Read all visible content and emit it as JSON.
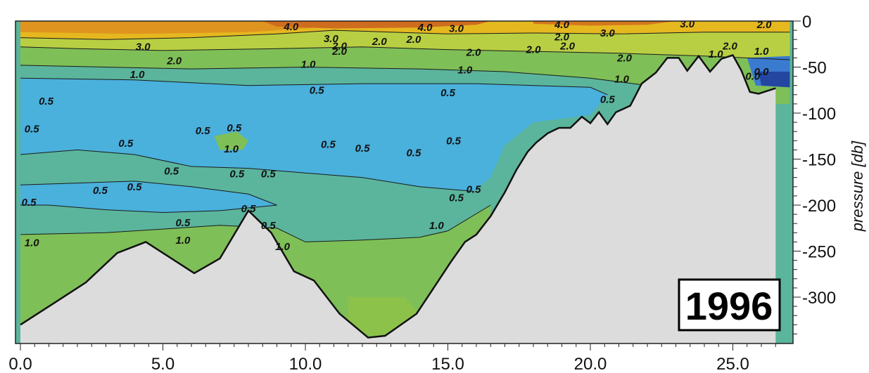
{
  "chart_data": {
    "type": "contour",
    "year_label": "1996",
    "ylabel": "pressure [db]",
    "xlabel": "",
    "xlim": [
      0,
      26.5
    ],
    "ylim": [
      0,
      345
    ],
    "y_inverted": true,
    "x_ticks": [
      {
        "value": 0,
        "label": "0.0"
      },
      {
        "value": 5,
        "label": "5.0"
      },
      {
        "value": 10,
        "label": "10.0"
      },
      {
        "value": 15,
        "label": "15.0"
      },
      {
        "value": 20,
        "label": "20.0"
      },
      {
        "value": 25,
        "label": "25.0"
      }
    ],
    "y_ticks": [
      {
        "value": 0,
        "label": "0"
      },
      {
        "value": 50,
        "label": "-50"
      },
      {
        "value": 100,
        "label": "-100"
      },
      {
        "value": 150,
        "label": "-150"
      },
      {
        "value": 200,
        "label": "-200"
      },
      {
        "value": 250,
        "label": "-250"
      },
      {
        "value": 300,
        "label": "-300"
      }
    ],
    "bathymetry": [
      [
        0,
        330
      ],
      [
        1.2,
        306
      ],
      [
        2.3,
        284
      ],
      [
        3.4,
        252
      ],
      [
        4.4,
        240
      ],
      [
        5.1,
        254
      ],
      [
        6.1,
        274
      ],
      [
        7.0,
        258
      ],
      [
        8.0,
        206
      ],
      [
        8.8,
        230
      ],
      [
        9.6,
        272
      ],
      [
        10.3,
        282
      ],
      [
        11.2,
        318
      ],
      [
        12.2,
        344
      ],
      [
        12.8,
        342
      ],
      [
        13.9,
        318
      ],
      [
        14.5,
        290
      ],
      [
        15.1,
        262
      ],
      [
        15.6,
        240
      ],
      [
        16.0,
        232
      ],
      [
        16.5,
        212
      ],
      [
        17.0,
        186
      ],
      [
        17.4,
        162
      ],
      [
        17.8,
        142
      ],
      [
        18.1,
        132
      ],
      [
        18.5,
        122
      ],
      [
        18.9,
        116
      ],
      [
        19.3,
        116
      ],
      [
        19.7,
        104
      ],
      [
        20.0,
        111
      ],
      [
        20.3,
        99
      ],
      [
        20.6,
        112
      ],
      [
        20.9,
        99
      ],
      [
        21.4,
        92
      ],
      [
        21.8,
        68
      ],
      [
        22.3,
        56
      ],
      [
        22.7,
        40
      ],
      [
        23.1,
        40
      ],
      [
        23.4,
        54
      ],
      [
        23.8,
        38
      ],
      [
        24.2,
        55
      ],
      [
        24.6,
        41
      ],
      [
        25.0,
        37
      ],
      [
        25.3,
        54
      ],
      [
        25.6,
        77
      ],
      [
        25.9,
        79
      ],
      [
        26.5,
        73
      ]
    ],
    "contour_levels": [
      "0.0",
      "0.5",
      "1.0",
      "2.0",
      "3.0",
      "4.0"
    ],
    "contour_labels": [
      {
        "text": "4.0",
        "x": 9.5,
        "y": 6
      },
      {
        "text": "4.0",
        "x": 14.2,
        "y": 7
      },
      {
        "text": "3.0",
        "x": 15.3,
        "y": 8
      },
      {
        "text": "4.0",
        "x": 19.0,
        "y": 4
      },
      {
        "text": "3.0",
        "x": 23.4,
        "y": 3
      },
      {
        "text": "2.0",
        "x": 26.1,
        "y": 4
      },
      {
        "text": "3.0",
        "x": 4.3,
        "y": 28
      },
      {
        "text": "2.0",
        "x": 5.4,
        "y": 43
      },
      {
        "text": "3.0",
        "x": 10.9,
        "y": 19
      },
      {
        "text": "2.0",
        "x": 11.2,
        "y": 27
      },
      {
        "text": "2.0",
        "x": 11.2,
        "y": 33
      },
      {
        "text": "2.0",
        "x": 12.6,
        "y": 22
      },
      {
        "text": "2.0",
        "x": 13.8,
        "y": 20
      },
      {
        "text": "2.0",
        "x": 19.0,
        "y": 17
      },
      {
        "text": "3.0",
        "x": 20.6,
        "y": 13
      },
      {
        "text": "2.0",
        "x": 15.9,
        "y": 34
      },
      {
        "text": "2.0",
        "x": 18.0,
        "y": 31
      },
      {
        "text": "2.0",
        "x": 19.2,
        "y": 27
      },
      {
        "text": "2.0",
        "x": 21.2,
        "y": 40
      },
      {
        "text": "2.0",
        "x": 24.9,
        "y": 27
      },
      {
        "text": "1.0",
        "x": 24.4,
        "y": 36
      },
      {
        "text": "1.0",
        "x": 26.0,
        "y": 33
      },
      {
        "text": "0.0",
        "x": 26.0,
        "y": 55
      },
      {
        "text": "0.0",
        "x": 25.7,
        "y": 60
      },
      {
        "text": "1.0",
        "x": 10.1,
        "y": 47
      },
      {
        "text": "1.0",
        "x": 15.6,
        "y": 53
      },
      {
        "text": "1.0",
        "x": 4.1,
        "y": 58
      },
      {
        "text": "1.0",
        "x": 21.1,
        "y": 63
      },
      {
        "text": "0.5",
        "x": 0.9,
        "y": 87
      },
      {
        "text": "0.5",
        "x": 10.4,
        "y": 75
      },
      {
        "text": "0.5",
        "x": 15.0,
        "y": 78
      },
      {
        "text": "0.5",
        "x": 20.6,
        "y": 85
      },
      {
        "text": "0.5",
        "x": 0.4,
        "y": 117
      },
      {
        "text": "0.5",
        "x": 6.4,
        "y": 119
      },
      {
        "text": "0.5",
        "x": 7.5,
        "y": 116
      },
      {
        "text": "0.5",
        "x": 3.7,
        "y": 133
      },
      {
        "text": "1.0",
        "x": 7.4,
        "y": 139
      },
      {
        "text": "0.5",
        "x": 10.8,
        "y": 134
      },
      {
        "text": "0.5",
        "x": 12.0,
        "y": 138
      },
      {
        "text": "0.5",
        "x": 15.2,
        "y": 130
      },
      {
        "text": "0.5",
        "x": 13.8,
        "y": 143
      },
      {
        "text": "0.5",
        "x": 5.3,
        "y": 163
      },
      {
        "text": "0.5",
        "x": 7.6,
        "y": 166
      },
      {
        "text": "0.5",
        "x": 8.7,
        "y": 166
      },
      {
        "text": "0.5",
        "x": 15.9,
        "y": 183
      },
      {
        "text": "0.5",
        "x": 15.3,
        "y": 192
      },
      {
        "text": "0.5",
        "x": 2.8,
        "y": 184
      },
      {
        "text": "0.5",
        "x": 4.0,
        "y": 180
      },
      {
        "text": "0.5",
        "x": 0.3,
        "y": 197
      },
      {
        "text": "0.5",
        "x": 5.7,
        "y": 219
      },
      {
        "text": "0.5",
        "x": 8.0,
        "y": 204
      },
      {
        "text": "0.5",
        "x": 8.7,
        "y": 222
      },
      {
        "text": "1.0",
        "x": 14.6,
        "y": 222
      },
      {
        "text": "1.0",
        "x": 0.4,
        "y": 241
      },
      {
        "text": "1.0",
        "x": 5.7,
        "y": 238
      },
      {
        "text": "1.0",
        "x": 9.2,
        "y": 245
      }
    ]
  }
}
